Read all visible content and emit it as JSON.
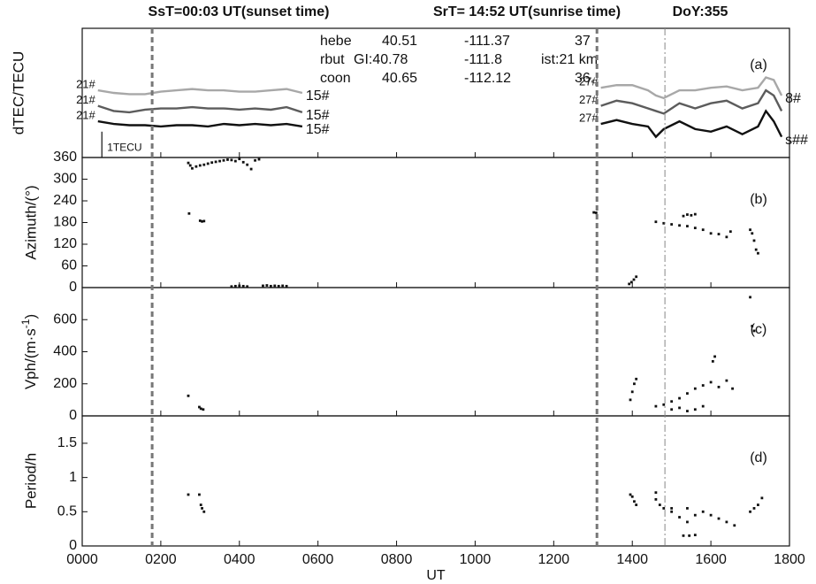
{
  "header": {
    "sunset": "SsT=00:03 UT(sunset time)",
    "sunrise": "SrT= 14:52 UT(sunrise time)",
    "doy": "DoY:355"
  },
  "table": {
    "rows": [
      [
        "hebe",
        "40.51",
        "-111.37",
        "37"
      ],
      [
        "rbut",
        "GI:40.78",
        "-111.8",
        "ist:21 km"
      ],
      [
        "coon",
        "40.65",
        "-112.12",
        "36."
      ]
    ]
  },
  "vlines": [
    {
      "x": 178,
      "style": "dashed"
    },
    {
      "x": 1310,
      "style": "dashed"
    },
    {
      "x": 1483,
      "style": "dashdot"
    }
  ],
  "chart_data": [
    {
      "type": "line",
      "ylabel": "dTEC/TECU",
      "panel_label": "(a)",
      "xlim": [
        0,
        1800
      ],
      "ylim": [
        0,
        5
      ],
      "scale_bar": {
        "x": 50,
        "value": 1,
        "label": "1TECU"
      },
      "series": [
        {
          "color": "#a8a8a8",
          "start_label": "21#",
          "end_label": "15#",
          "x": [
            40,
            80,
            120,
            160,
            200,
            240,
            280,
            320,
            360,
            400,
            440,
            480,
            520,
            560
          ],
          "values": [
            2.6,
            2.5,
            2.45,
            2.45,
            2.55,
            2.6,
            2.65,
            2.6,
            2.6,
            2.55,
            2.55,
            2.6,
            2.65,
            2.5
          ]
        },
        {
          "color": "#5c5c5c",
          "start_label": "21#",
          "end_label": "15#",
          "x": [
            40,
            80,
            120,
            160,
            200,
            240,
            280,
            320,
            360,
            400,
            440,
            480,
            520,
            560
          ],
          "values": [
            2.0,
            1.8,
            1.75,
            1.85,
            1.9,
            1.9,
            1.95,
            1.9,
            1.9,
            1.85,
            1.9,
            1.85,
            1.95,
            1.75
          ]
        },
        {
          "color": "#111111",
          "start_label": "21#",
          "end_label": "15#",
          "x": [
            40,
            80,
            120,
            160,
            200,
            240,
            280,
            320,
            360,
            400,
            440,
            480,
            520,
            560
          ],
          "values": [
            1.4,
            1.3,
            1.25,
            1.25,
            1.2,
            1.25,
            1.25,
            1.2,
            1.3,
            1.25,
            1.3,
            1.25,
            1.3,
            1.2
          ]
        },
        {
          "color": "#a8a8a8",
          "start_label": "27#",
          "end_label": "8#",
          "x": [
            1320,
            1360,
            1400,
            1440,
            1460,
            1480,
            1520,
            1560,
            1600,
            1640,
            1680,
            1720,
            1740,
            1760,
            1780
          ],
          "values": [
            2.7,
            2.8,
            2.8,
            2.6,
            2.4,
            2.3,
            2.6,
            2.6,
            2.7,
            2.75,
            2.6,
            2.7,
            3.1,
            3.0,
            2.4
          ]
        },
        {
          "color": "#5c5c5c",
          "start_label": "27#",
          "x": [
            1320,
            1360,
            1400,
            1440,
            1460,
            1480,
            1520,
            1560,
            1600,
            1640,
            1680,
            1720,
            1740,
            1760,
            1780
          ],
          "values": [
            2.0,
            2.2,
            2.1,
            1.9,
            1.8,
            1.7,
            2.1,
            1.9,
            2.1,
            2.2,
            1.9,
            2.1,
            2.6,
            2.4,
            1.8
          ]
        },
        {
          "color": "#111111",
          "start_label": "27#",
          "end_label": "s##",
          "x": [
            1320,
            1360,
            1400,
            1440,
            1460,
            1480,
            1520,
            1560,
            1600,
            1640,
            1680,
            1720,
            1740,
            1760,
            1780
          ],
          "values": [
            1.3,
            1.45,
            1.3,
            1.2,
            0.8,
            1.1,
            1.4,
            1.1,
            1.0,
            1.2,
            0.9,
            1.2,
            1.8,
            1.4,
            0.8
          ]
        }
      ]
    },
    {
      "type": "scatter",
      "ylabel": "Azimuth/(°)",
      "panel_label": "(b)",
      "xlim": [
        0,
        1800
      ],
      "ylim": [
        0,
        360
      ],
      "yticks": [
        0,
        60,
        120,
        180,
        240,
        300,
        360
      ],
      "color": "#111111",
      "x": [
        270,
        275,
        280,
        290,
        300,
        310,
        320,
        330,
        340,
        350,
        360,
        370,
        380,
        390,
        400,
        410,
        420,
        430,
        440,
        450,
        272,
        300,
        305,
        310,
        380,
        390,
        400,
        410,
        420,
        460,
        470,
        480,
        490,
        500,
        510,
        520,
        1302,
        1308,
        1392,
        1398,
        1404,
        1410,
        1460,
        1480,
        1500,
        1520,
        1540,
        1560,
        1580,
        1600,
        1620,
        1640,
        1650,
        1530,
        1540,
        1550,
        1560,
        1700,
        1705,
        1710,
        1715,
        1720
      ],
      "values": [
        345,
        338,
        330,
        335,
        338,
        340,
        343,
        346,
        348,
        350,
        352,
        354,
        353,
        350,
        356,
        347,
        340,
        328,
        352,
        355,
        205,
        185,
        183,
        184,
        3,
        4,
        5,
        4,
        3,
        5,
        6,
        4,
        5,
        4,
        5,
        4,
        208,
        207,
        10,
        15,
        22,
        30,
        182,
        178,
        175,
        172,
        170,
        165,
        160,
        150,
        148,
        140,
        155,
        198,
        202,
        200,
        203,
        160,
        150,
        130,
        105,
        95
      ]
    },
    {
      "type": "scatter",
      "ylabel": {
        "text": "Vph/(m·s",
        "sup": "-1",
        "close": ")"
      },
      "panel_label": "(c)",
      "xlim": [
        0,
        1800
      ],
      "ylim": [
        0,
        800
      ],
      "yticks": [
        0,
        200,
        400,
        600
      ],
      "color": "#111111",
      "x": [
        270,
        298,
        302,
        308,
        1395,
        1400,
        1405,
        1410,
        1460,
        1480,
        1500,
        1520,
        1540,
        1560,
        1580,
        1600,
        1620,
        1640,
        1655,
        1500,
        1520,
        1540,
        1560,
        1580,
        1605,
        1610,
        1700,
        1705,
        1710
      ],
      "values": [
        125,
        55,
        45,
        40,
        100,
        150,
        200,
        230,
        60,
        70,
        90,
        110,
        140,
        170,
        190,
        210,
        180,
        220,
        170,
        40,
        50,
        30,
        40,
        60,
        340,
        370,
        740,
        560,
        530
      ]
    },
    {
      "type": "scatter",
      "ylabel": "Period/h",
      "panel_label": "(d)",
      "xlim": [
        0,
        1800
      ],
      "ylim": [
        0,
        1.9
      ],
      "yticks": [
        0,
        0.5,
        1,
        1.5
      ],
      "color": "#111111",
      "xlabel": "UT",
      "xticks": [
        {
          "value": 0,
          "label": "0000"
        },
        {
          "value": 200,
          "label": "0200"
        },
        {
          "value": 400,
          "label": "0400"
        },
        {
          "value": 600,
          "label": "0600"
        },
        {
          "value": 800,
          "label": "0800"
        },
        1000,
        1200,
        1400,
        1600,
        1800
      ],
      "x": [
        270,
        298,
        302,
        305,
        310,
        1395,
        1400,
        1405,
        1410,
        1460,
        1470,
        1480,
        1500,
        1520,
        1540,
        1560,
        1580,
        1600,
        1620,
        1640,
        1660,
        1530,
        1545,
        1560,
        1460,
        1500,
        1540,
        1700,
        1710,
        1720,
        1730
      ],
      "values": [
        0.75,
        0.75,
        0.6,
        0.55,
        0.5,
        0.75,
        0.72,
        0.65,
        0.6,
        0.68,
        0.6,
        0.55,
        0.5,
        0.42,
        0.35,
        0.45,
        0.5,
        0.45,
        0.4,
        0.35,
        0.3,
        0.15,
        0.15,
        0.16,
        0.78,
        0.55,
        0.55,
        0.5,
        0.55,
        0.6,
        0.7
      ]
    }
  ]
}
